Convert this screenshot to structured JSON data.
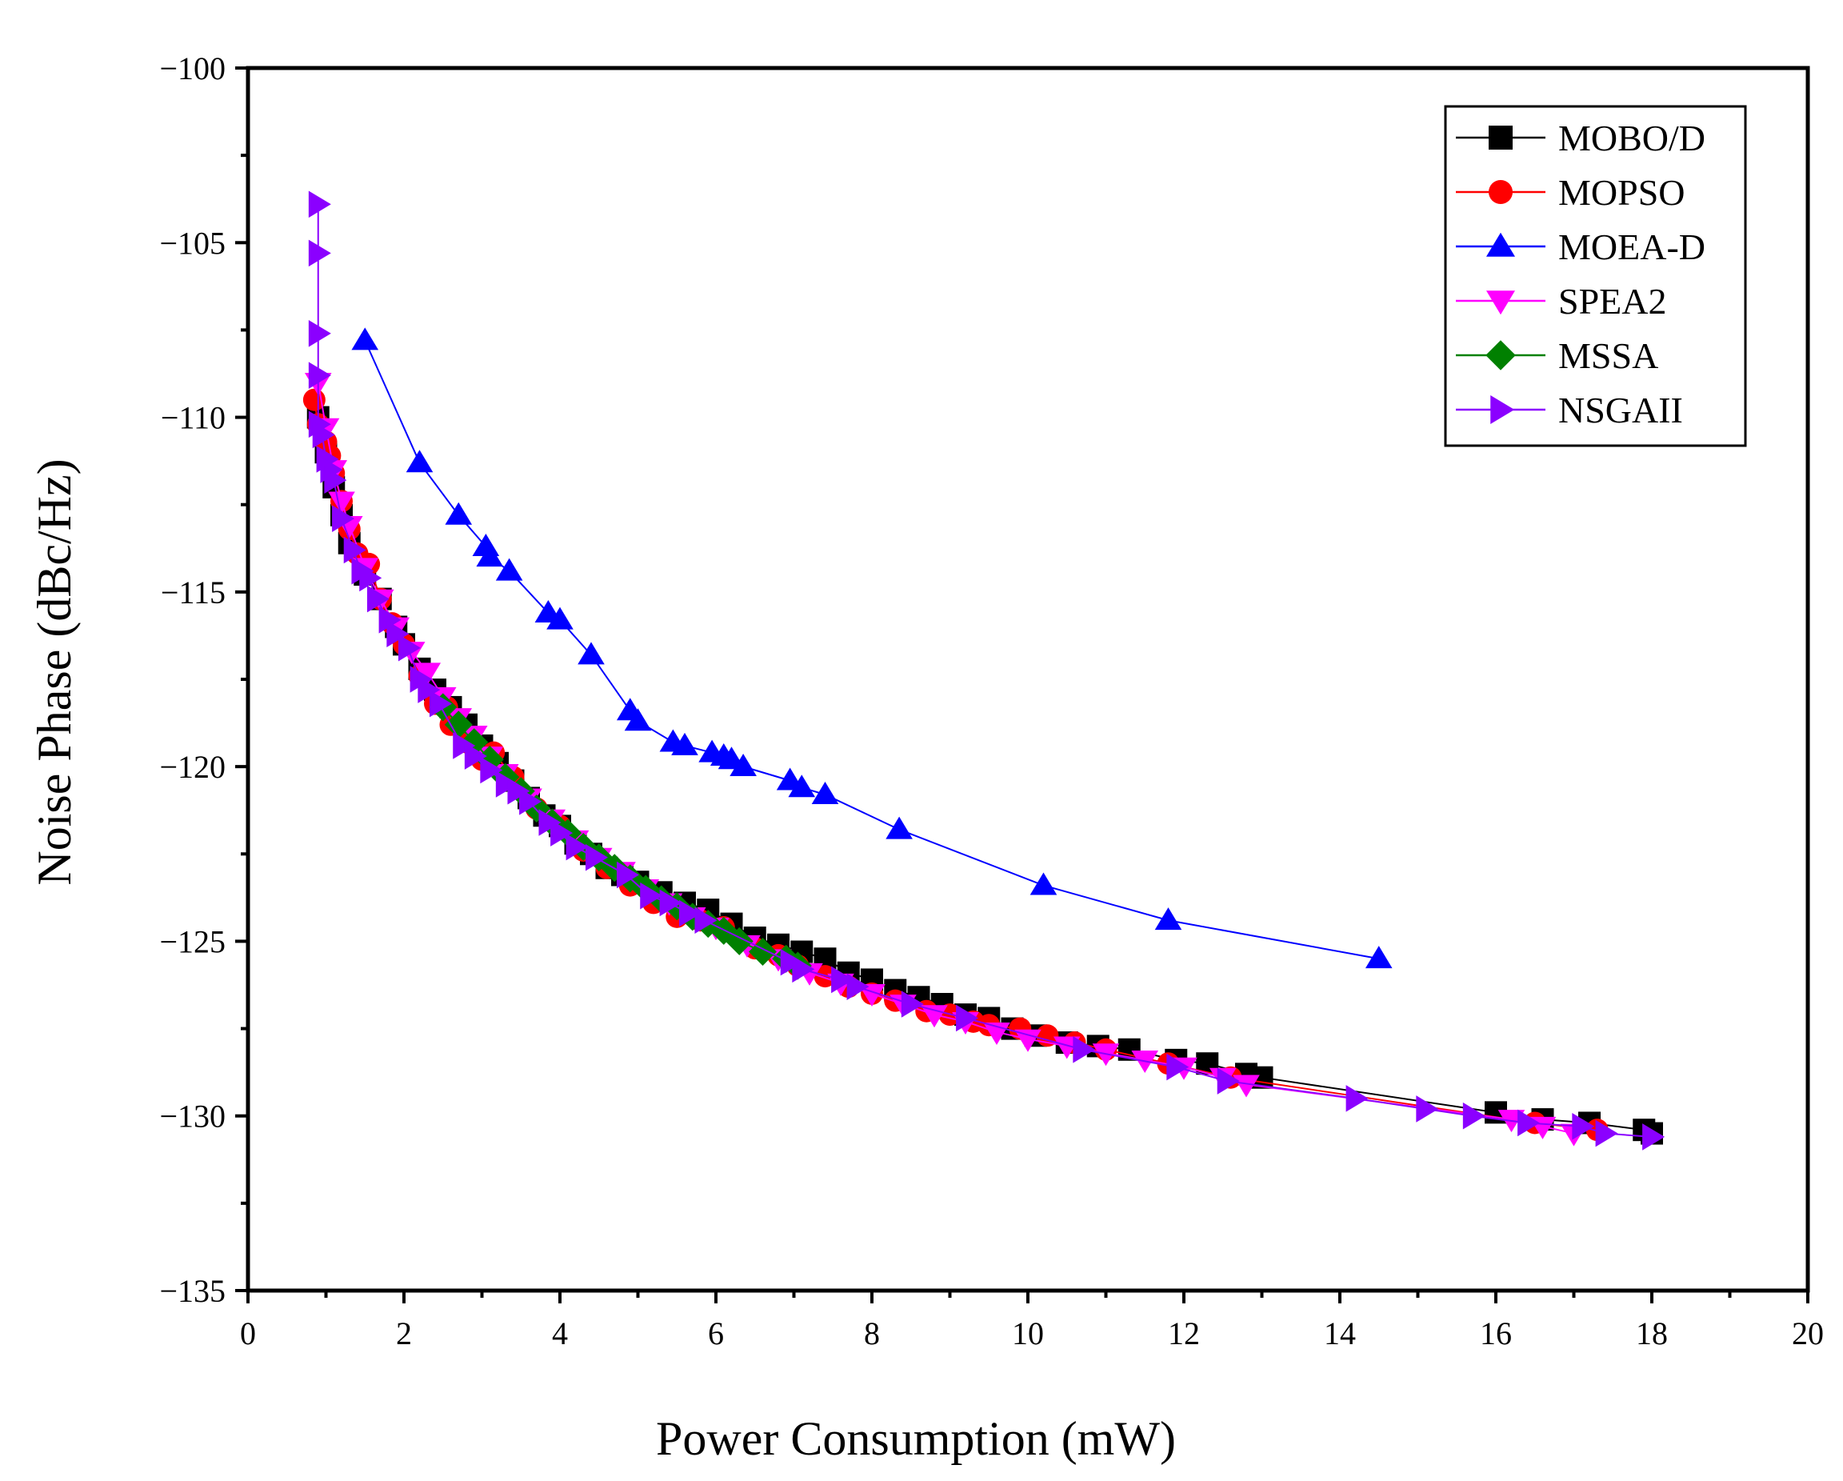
{
  "chart_data": {
    "type": "scatter",
    "xlabel": "Power Consumption (mW)",
    "ylabel": "Noise Phase (dBc/Hz)",
    "xlim": [
      0,
      20
    ],
    "ylim": [
      -135,
      -100
    ],
    "xticks": [
      0,
      2,
      4,
      6,
      8,
      10,
      12,
      14,
      16,
      18,
      20
    ],
    "yticks": [
      -135,
      -130,
      -125,
      -120,
      -115,
      -110,
      -105,
      -100
    ],
    "xtick_labels": [
      "0",
      "2",
      "4",
      "6",
      "8",
      "10",
      "12",
      "14",
      "16",
      "18",
      "20"
    ],
    "ytick_labels": [
      "−135",
      "−130",
      "−125",
      "−120",
      "−115",
      "−110",
      "−105",
      "−100"
    ],
    "grid": false,
    "legend_position": "top-right",
    "series": [
      {
        "name": "MOBO/D",
        "marker": "square",
        "color": "#000000",
        "x": [
          0.9,
          1.0,
          1.1,
          1.2,
          1.3,
          1.5,
          1.7,
          1.9,
          2.0,
          2.2,
          2.4,
          2.6,
          2.8,
          3.0,
          3.2,
          3.4,
          3.6,
          3.8,
          4.0,
          4.2,
          4.4,
          4.6,
          4.8,
          5.0,
          5.3,
          5.6,
          5.9,
          6.2,
          6.5,
          6.8,
          7.1,
          7.4,
          7.7,
          8.0,
          8.3,
          8.6,
          8.9,
          9.2,
          9.5,
          9.8,
          10.1,
          10.5,
          10.9,
          11.3,
          11.9,
          12.3,
          12.8,
          13.0,
          16.0,
          16.6,
          17.2,
          17.9,
          18.0
        ],
        "y": [
          -110.0,
          -111.0,
          -112.0,
          -112.8,
          -113.6,
          -114.5,
          -115.2,
          -116.0,
          -116.5,
          -117.2,
          -117.8,
          -118.3,
          -118.8,
          -119.4,
          -119.9,
          -120.4,
          -120.9,
          -121.4,
          -121.7,
          -122.2,
          -122.5,
          -122.9,
          -123.1,
          -123.3,
          -123.6,
          -123.9,
          -124.1,
          -124.5,
          -124.9,
          -125.1,
          -125.3,
          -125.5,
          -125.9,
          -126.1,
          -126.4,
          -126.6,
          -126.8,
          -127.1,
          -127.2,
          -127.5,
          -127.7,
          -127.9,
          -128.0,
          -128.1,
          -128.4,
          -128.5,
          -128.8,
          -128.9,
          -129.9,
          -130.1,
          -130.2,
          -130.4,
          -130.5
        ]
      },
      {
        "name": "MOPSO",
        "marker": "circle",
        "color": "#ff0000",
        "x": [
          0.85,
          0.9,
          1.0,
          1.05,
          1.1,
          1.2,
          1.3,
          1.4,
          1.55,
          1.7,
          1.85,
          2.0,
          2.2,
          2.4,
          2.55,
          2.6,
          2.8,
          3.0,
          3.15,
          3.4,
          3.7,
          4.0,
          4.3,
          4.6,
          4.9,
          5.2,
          5.5,
          5.8,
          6.1,
          6.5,
          6.8,
          7.05,
          7.4,
          7.7,
          8.0,
          8.3,
          8.7,
          9.0,
          9.3,
          9.5,
          9.9,
          10.25,
          10.6,
          11.0,
          11.8,
          12.6,
          16.5,
          17.3
        ],
        "y": [
          -109.5,
          -110.2,
          -110.7,
          -111.1,
          -111.6,
          -112.4,
          -113.2,
          -113.9,
          -114.2,
          -115.2,
          -115.9,
          -116.5,
          -117.4,
          -118.2,
          -118.3,
          -118.8,
          -119.3,
          -119.8,
          -119.6,
          -120.3,
          -121.2,
          -121.7,
          -122.4,
          -122.9,
          -123.4,
          -123.9,
          -124.3,
          -124.4,
          -124.6,
          -125.2,
          -125.4,
          -125.7,
          -126.0,
          -126.3,
          -126.5,
          -126.7,
          -127.0,
          -127.1,
          -127.3,
          -127.4,
          -127.5,
          -127.7,
          -127.9,
          -128.1,
          -128.5,
          -128.9,
          -130.2,
          -130.4
        ]
      },
      {
        "name": "MOEA-D",
        "marker": "triangle-up",
        "color": "#0000ff",
        "x": [
          1.5,
          2.2,
          2.7,
          3.05,
          3.1,
          3.35,
          3.85,
          4.0,
          4.4,
          4.9,
          5.0,
          5.45,
          5.6,
          5.95,
          6.1,
          6.2,
          6.35,
          6.95,
          7.1,
          7.4,
          8.35,
          10.2,
          11.8,
          14.5
        ],
        "y": [
          -107.8,
          -111.3,
          -112.8,
          -113.7,
          -114.0,
          -114.4,
          -115.6,
          -115.8,
          -116.8,
          -118.4,
          -118.7,
          -119.3,
          -119.4,
          -119.6,
          -119.7,
          -119.8,
          -120.0,
          -120.4,
          -120.6,
          -120.8,
          -121.8,
          -123.4,
          -124.4,
          -125.5
        ]
      },
      {
        "name": "SPEA2",
        "marker": "triangle-down",
        "color": "#ff00ff",
        "x": [
          0.9,
          1.0,
          1.1,
          1.2,
          1.3,
          1.5,
          1.7,
          1.9,
          2.1,
          2.3,
          2.5,
          2.7,
          2.9,
          3.1,
          3.3,
          3.6,
          3.9,
          4.2,
          4.5,
          4.8,
          5.1,
          5.4,
          5.7,
          6.0,
          6.4,
          6.8,
          7.2,
          7.6,
          8.0,
          8.4,
          8.8,
          9.2,
          9.6,
          10.0,
          10.5,
          11.0,
          11.5,
          12.0,
          12.5,
          12.8,
          16.2,
          16.6,
          17.0
        ],
        "y": [
          -109.0,
          -110.3,
          -111.5,
          -112.4,
          -113.1,
          -114.3,
          -115.2,
          -116.0,
          -116.7,
          -117.3,
          -118.0,
          -118.6,
          -119.1,
          -119.7,
          -120.2,
          -120.9,
          -121.5,
          -122.1,
          -122.6,
          -123.0,
          -123.5,
          -123.9,
          -124.3,
          -124.6,
          -125.1,
          -125.5,
          -125.9,
          -126.2,
          -126.5,
          -126.8,
          -127.1,
          -127.3,
          -127.6,
          -127.8,
          -128.0,
          -128.2,
          -128.4,
          -128.6,
          -128.9,
          -129.1,
          -130.1,
          -130.3,
          -130.5
        ]
      },
      {
        "name": "MSSA",
        "marker": "diamond",
        "color": "#008000",
        "x": [
          2.5,
          2.7,
          2.9,
          3.1,
          3.3,
          3.5,
          3.7,
          3.9,
          4.1,
          4.3,
          4.5,
          4.7,
          4.9,
          5.1,
          5.3,
          5.5,
          5.7,
          5.9,
          6.1,
          6.3,
          6.6,
          6.9,
          7.05
        ],
        "y": [
          -118.3,
          -118.8,
          -119.3,
          -119.8,
          -120.3,
          -120.7,
          -121.2,
          -121.6,
          -121.9,
          -122.3,
          -122.6,
          -122.9,
          -123.2,
          -123.5,
          -123.8,
          -124.0,
          -124.3,
          -124.5,
          -124.7,
          -125.0,
          -125.3,
          -125.5,
          -125.7
        ]
      },
      {
        "name": "NSGAII",
        "marker": "triangle-right",
        "color": "#8b00ff",
        "x": [
          0.9,
          0.9,
          0.9,
          0.9,
          0.9,
          0.95,
          1.0,
          1.05,
          1.1,
          1.2,
          1.35,
          1.45,
          1.55,
          1.65,
          1.8,
          1.9,
          2.05,
          2.2,
          2.3,
          2.45,
          2.75,
          2.9,
          3.1,
          3.3,
          3.45,
          3.6,
          3.85,
          4.0,
          4.2,
          4.45,
          4.85,
          5.15,
          5.4,
          5.65,
          5.85,
          6.95,
          7.1,
          7.6,
          7.8,
          8.5,
          9.2,
          10.7,
          11.9,
          12.55,
          14.2,
          15.1,
          15.7,
          16.4,
          17.1,
          17.4,
          18.0
        ],
        "y": [
          -103.9,
          -105.3,
          -107.6,
          -108.8,
          -110.2,
          -110.5,
          -111.2,
          -111.5,
          -111.8,
          -112.9,
          -113.8,
          -114.4,
          -114.6,
          -115.2,
          -115.8,
          -116.2,
          -116.6,
          -117.5,
          -117.8,
          -118.2,
          -119.4,
          -119.7,
          -120.1,
          -120.5,
          -120.7,
          -121.0,
          -121.6,
          -121.9,
          -122.3,
          -122.6,
          -123.1,
          -123.7,
          -123.9,
          -124.2,
          -124.4,
          -125.6,
          -125.8,
          -126.1,
          -126.3,
          -126.8,
          -127.2,
          -128.1,
          -128.6,
          -129.0,
          -129.5,
          -129.8,
          -130.0,
          -130.2,
          -130.3,
          -130.5,
          -130.6
        ]
      }
    ]
  }
}
